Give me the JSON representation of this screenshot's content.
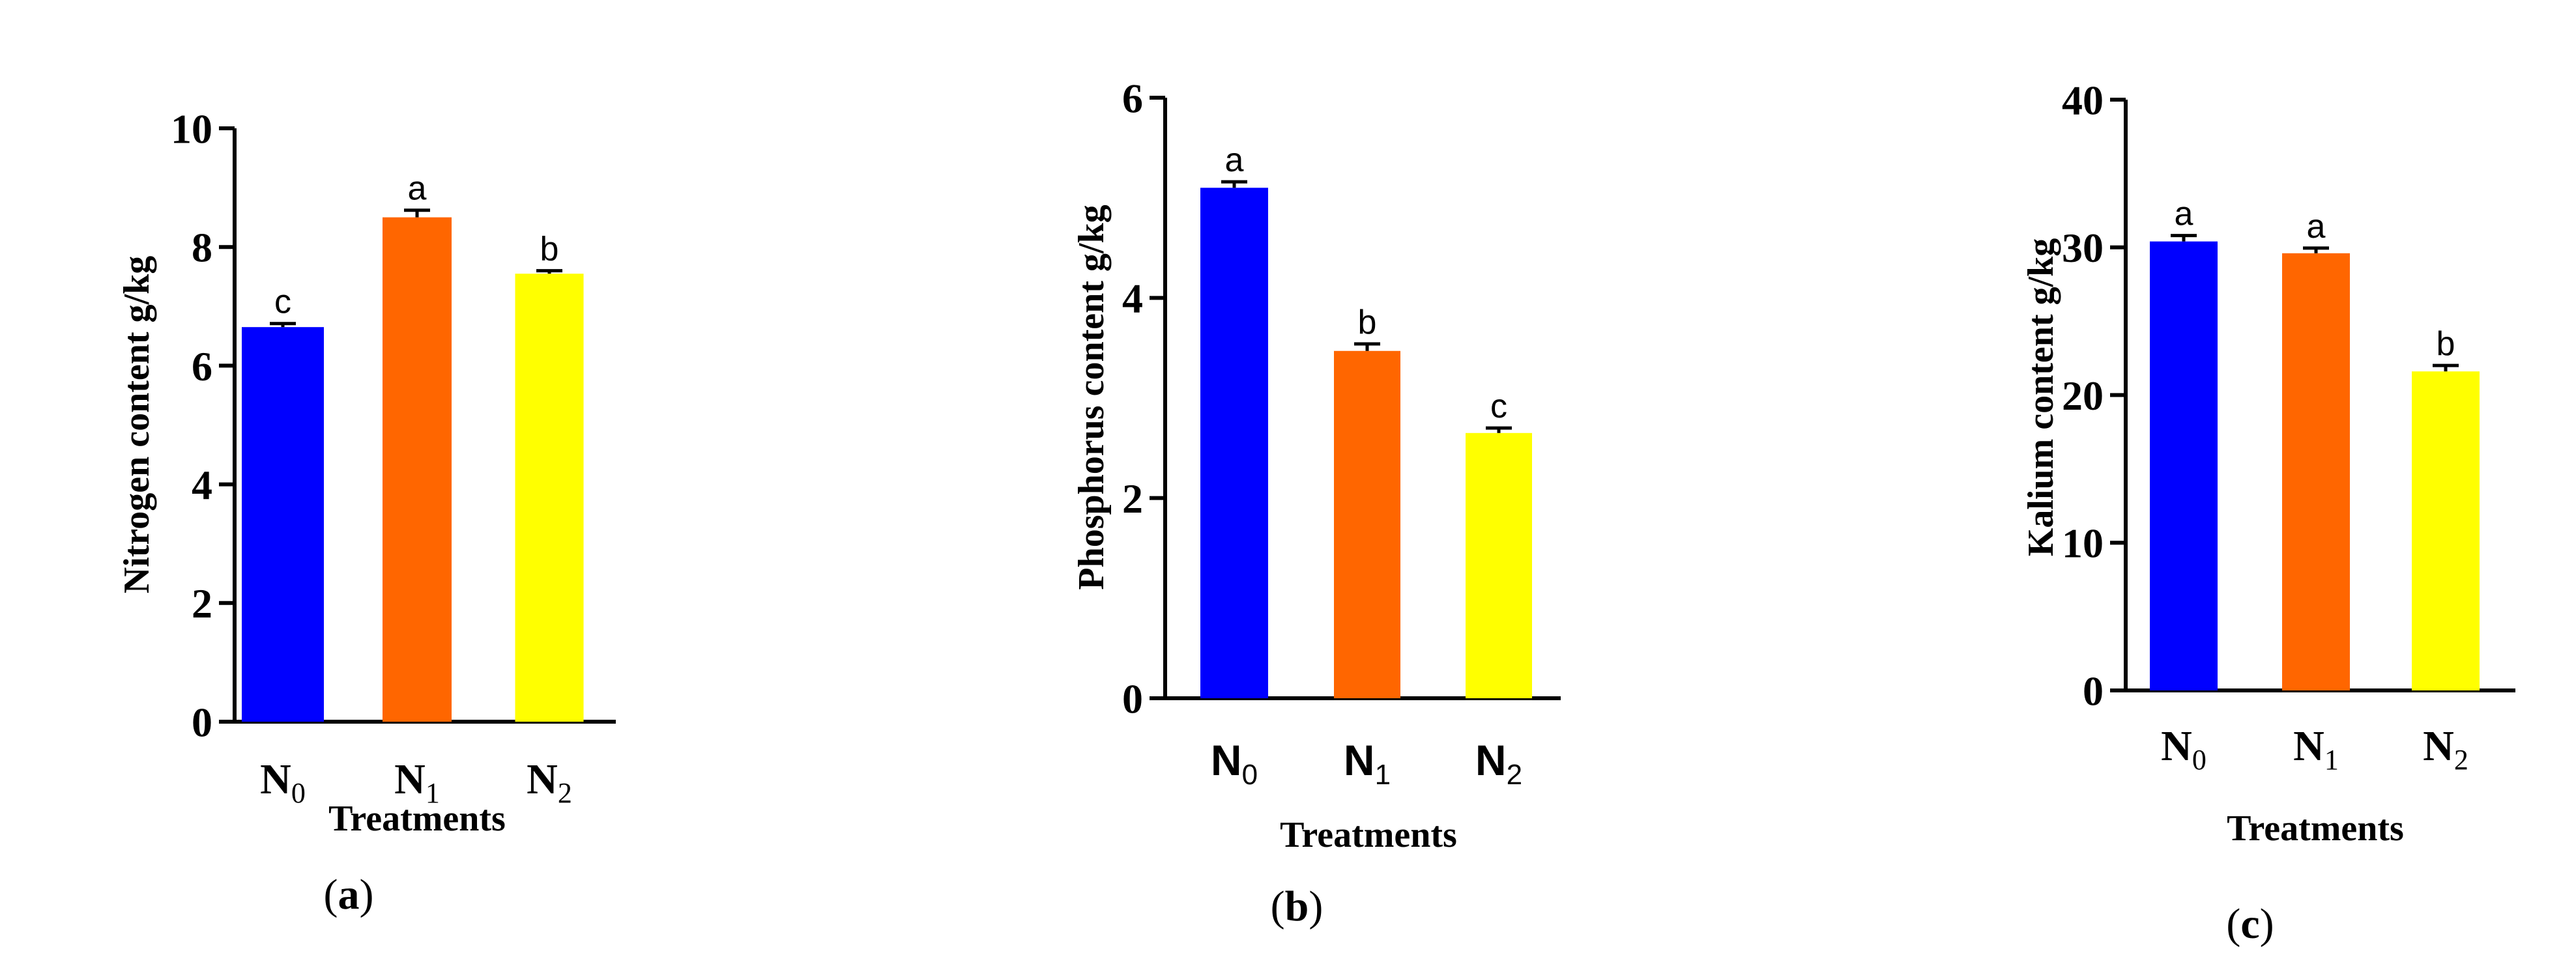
{
  "chart_data": [
    {
      "type": "bar",
      "panel_label_prefix": "(",
      "panel_letter": "a",
      "panel_label_suffix": ")",
      "ylabel": "Nitrogen content g/kg",
      "xlabel": "Treatments",
      "ylim": [
        0,
        10
      ],
      "yticks": [
        0,
        2,
        4,
        6,
        8,
        10
      ],
      "ytick_labels": [
        "0",
        "2",
        "4",
        "6",
        "8",
        "10"
      ],
      "categories": [
        {
          "base": "N",
          "sub": "0"
        },
        {
          "base": "N",
          "sub": "1"
        },
        {
          "base": "N",
          "sub": "2"
        }
      ],
      "values": [
        6.65,
        8.5,
        7.55
      ],
      "errors": [
        0.06,
        0.12,
        0.05
      ],
      "significance": [
        "c",
        "a",
        "b"
      ],
      "colors": [
        "#0000ff",
        "#ff6600",
        "#ffff00"
      ]
    },
    {
      "type": "bar",
      "panel_label_prefix": "(",
      "panel_letter": "b",
      "panel_label_suffix": ")",
      "ylabel": "Phosphorus content g/kg",
      "xlabel": "Treatments",
      "ylim": [
        0,
        6
      ],
      "yticks": [
        0,
        2,
        4,
        6
      ],
      "ytick_labels": [
        "0",
        "2",
        "4",
        "6"
      ],
      "categories": [
        {
          "base": "N",
          "sub": "0"
        },
        {
          "base": "N",
          "sub": "1"
        },
        {
          "base": "N",
          "sub": "2"
        }
      ],
      "values": [
        5.1,
        3.47,
        2.65
      ],
      "errors": [
        0.06,
        0.07,
        0.05
      ],
      "significance": [
        "a",
        "b",
        "c"
      ],
      "colors": [
        "#0000ff",
        "#ff6600",
        "#ffff00"
      ]
    },
    {
      "type": "bar",
      "panel_label_prefix": "(",
      "panel_letter": "c",
      "panel_label_suffix": ")",
      "ylabel": "Kalium content g/kg",
      "xlabel": "Treatments",
      "ylim": [
        0,
        40
      ],
      "yticks": [
        0,
        10,
        20,
        30,
        40
      ],
      "ytick_labels": [
        "0",
        "10",
        "20",
        "30",
        "40"
      ],
      "categories": [
        {
          "base": "N",
          "sub": "0"
        },
        {
          "base": "N",
          "sub": "1"
        },
        {
          "base": "N",
          "sub": "2"
        }
      ],
      "values": [
        30.4,
        29.6,
        21.6
      ],
      "errors": [
        0.4,
        0.35,
        0.4
      ],
      "significance": [
        "a",
        "a",
        "b"
      ],
      "colors": [
        "#0000ff",
        "#ff6600",
        "#ffff00"
      ]
    }
  ]
}
